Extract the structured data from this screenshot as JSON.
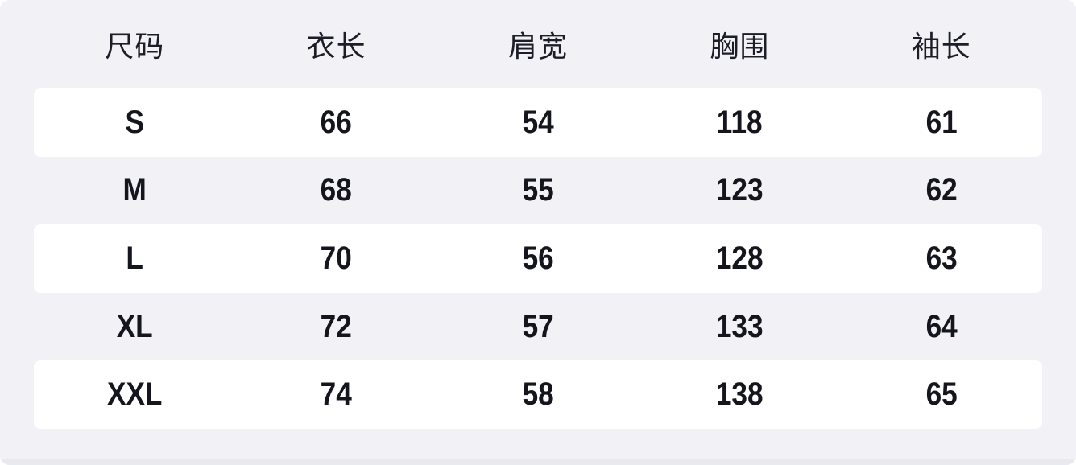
{
  "chart_data": {
    "type": "table",
    "title": "",
    "columns": [
      "尺码",
      "衣长",
      "肩宽",
      "胸围",
      "袖长"
    ],
    "rows": [
      [
        "S",
        "66",
        "54",
        "118",
        "61"
      ],
      [
        "M",
        "68",
        "55",
        "123",
        "62"
      ],
      [
        "L",
        "70",
        "56",
        "128",
        "63"
      ],
      [
        "XL",
        "72",
        "57",
        "133",
        "64"
      ],
      [
        "XXL",
        "74",
        "58",
        "138",
        "65"
      ]
    ],
    "layout": {
      "striped_row_indices": [
        0,
        2,
        4
      ],
      "legend": "none",
      "grid": "off"
    }
  },
  "colors": {
    "card_background": "#f1f1f6",
    "striped_row_background": "#ffffff",
    "bottom_edge": "#e9e9f0",
    "header_text": "#1d1d27",
    "value_text": "#15151d"
  }
}
